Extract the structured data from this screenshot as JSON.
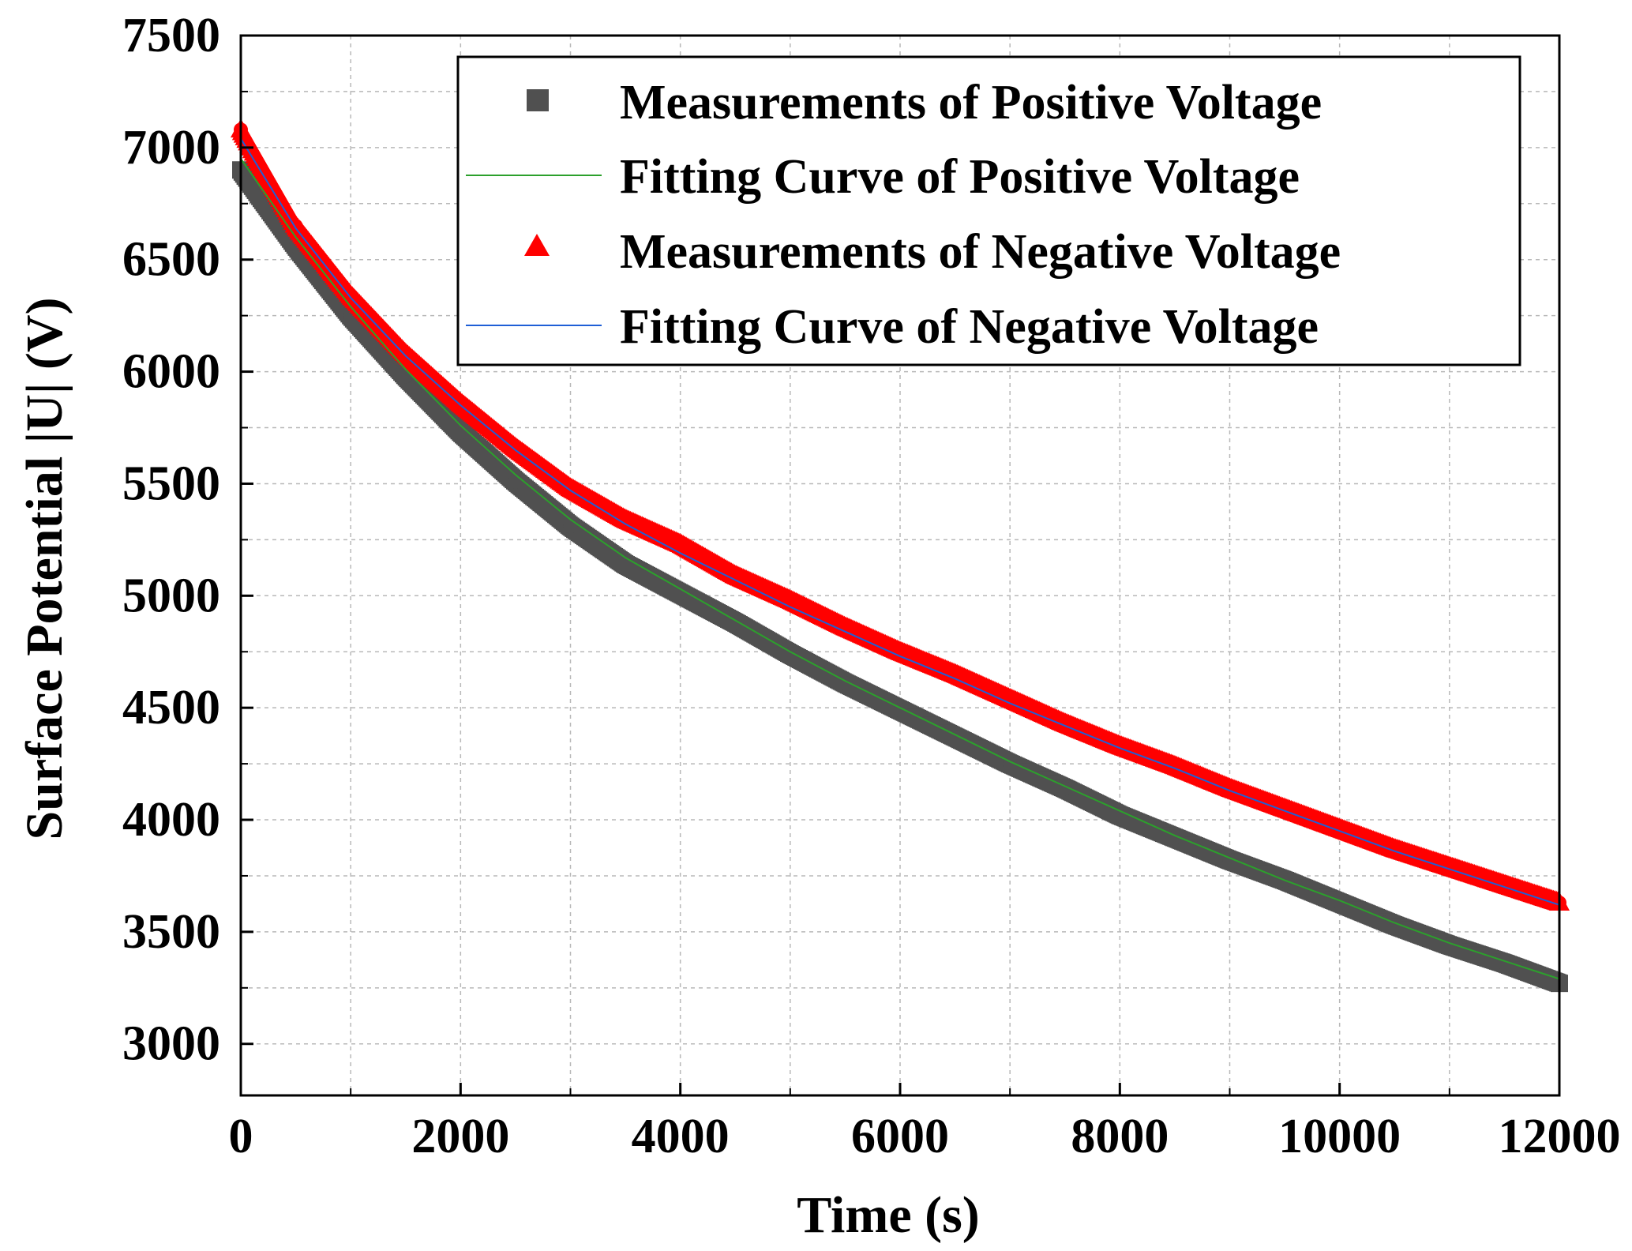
{
  "chart_data": {
    "type": "scatter",
    "title": "",
    "xlabel": "Time (s)",
    "ylabel": "Surface Potential |U| (V)",
    "xlim": [
      0,
      12000
    ],
    "ylim": [
      2770,
      7500
    ],
    "grid": true,
    "legend_position": "top-right",
    "x_ticks": [
      0,
      2000,
      4000,
      6000,
      8000,
      10000,
      12000
    ],
    "x_tick_labels": [
      "0",
      "2000",
      "4000",
      "6000",
      "8000",
      "10000",
      "12000"
    ],
    "y_ticks": [
      3000,
      3500,
      4000,
      4500,
      5000,
      5500,
      6000,
      6500,
      7000,
      7500
    ],
    "y_tick_labels": [
      "3000",
      "3500",
      "4000",
      "4500",
      "5000",
      "5500",
      "6000",
      "6500",
      "7000",
      "7500"
    ],
    "series": [
      {
        "name": "Measurements of Positive Voltage",
        "kind": "markers",
        "marker": "square",
        "color": "#505050",
        "x": [
          0,
          500,
          1000,
          1500,
          2000,
          2500,
          3000,
          3500,
          4000,
          4500,
          5000,
          5500,
          6000,
          6500,
          7000,
          7500,
          8000,
          8500,
          9000,
          9500,
          10000,
          10500,
          11000,
          11500,
          12000
        ],
        "values": [
          6900,
          6560,
          6250,
          5980,
          5730,
          5510,
          5310,
          5140,
          5010,
          4880,
          4740,
          4610,
          4490,
          4370,
          4250,
          4140,
          4020,
          3920,
          3820,
          3730,
          3630,
          3530,
          3440,
          3360,
          3270
        ]
      },
      {
        "name": "Fitting Curve of Positive Voltage",
        "kind": "line",
        "color": "#2ca02c",
        "x": [
          0,
          500,
          1000,
          1500,
          2000,
          2500,
          3000,
          3500,
          4000,
          4500,
          5000,
          5500,
          6000,
          6500,
          7000,
          7500,
          8000,
          8500,
          9000,
          9500,
          10000,
          10500,
          11000,
          11500,
          12000
        ],
        "values": [
          6950,
          6600,
          6290,
          6010,
          5760,
          5540,
          5340,
          5170,
          5030,
          4890,
          4750,
          4620,
          4500,
          4380,
          4260,
          4150,
          4040,
          3930,
          3830,
          3730,
          3640,
          3540,
          3450,
          3370,
          3290
        ]
      },
      {
        "name": "Measurements of Negative Voltage",
        "kind": "markers",
        "marker": "triangle",
        "color": "#ff0000",
        "x": [
          0,
          500,
          1000,
          1500,
          2000,
          2500,
          3000,
          3500,
          4000,
          4500,
          5000,
          5500,
          6000,
          6500,
          7000,
          7500,
          8000,
          8500,
          9000,
          9500,
          10000,
          10500,
          11000,
          11500,
          12000
        ],
        "values": [
          7080,
          6650,
          6340,
          6080,
          5860,
          5660,
          5480,
          5340,
          5230,
          5090,
          4980,
          4860,
          4750,
          4650,
          4540,
          4430,
          4330,
          4240,
          4140,
          4050,
          3960,
          3870,
          3790,
          3710,
          3630
        ]
      },
      {
        "name": "Fitting Curve of Negative Voltage",
        "kind": "line",
        "color": "#1f5fd6",
        "x": [
          0,
          500,
          1000,
          1500,
          2000,
          2500,
          3000,
          3500,
          4000,
          4500,
          5000,
          5500,
          6000,
          6500,
          7000,
          7500,
          8000,
          8500,
          9000,
          9500,
          10000,
          10500,
          11000,
          11500,
          12000
        ],
        "values": [
          7040,
          6640,
          6330,
          6070,
          5850,
          5650,
          5470,
          5320,
          5190,
          5070,
          4950,
          4840,
          4730,
          4630,
          4520,
          4420,
          4320,
          4230,
          4130,
          4040,
          3950,
          3860,
          3780,
          3700,
          3620
        ]
      }
    ]
  }
}
